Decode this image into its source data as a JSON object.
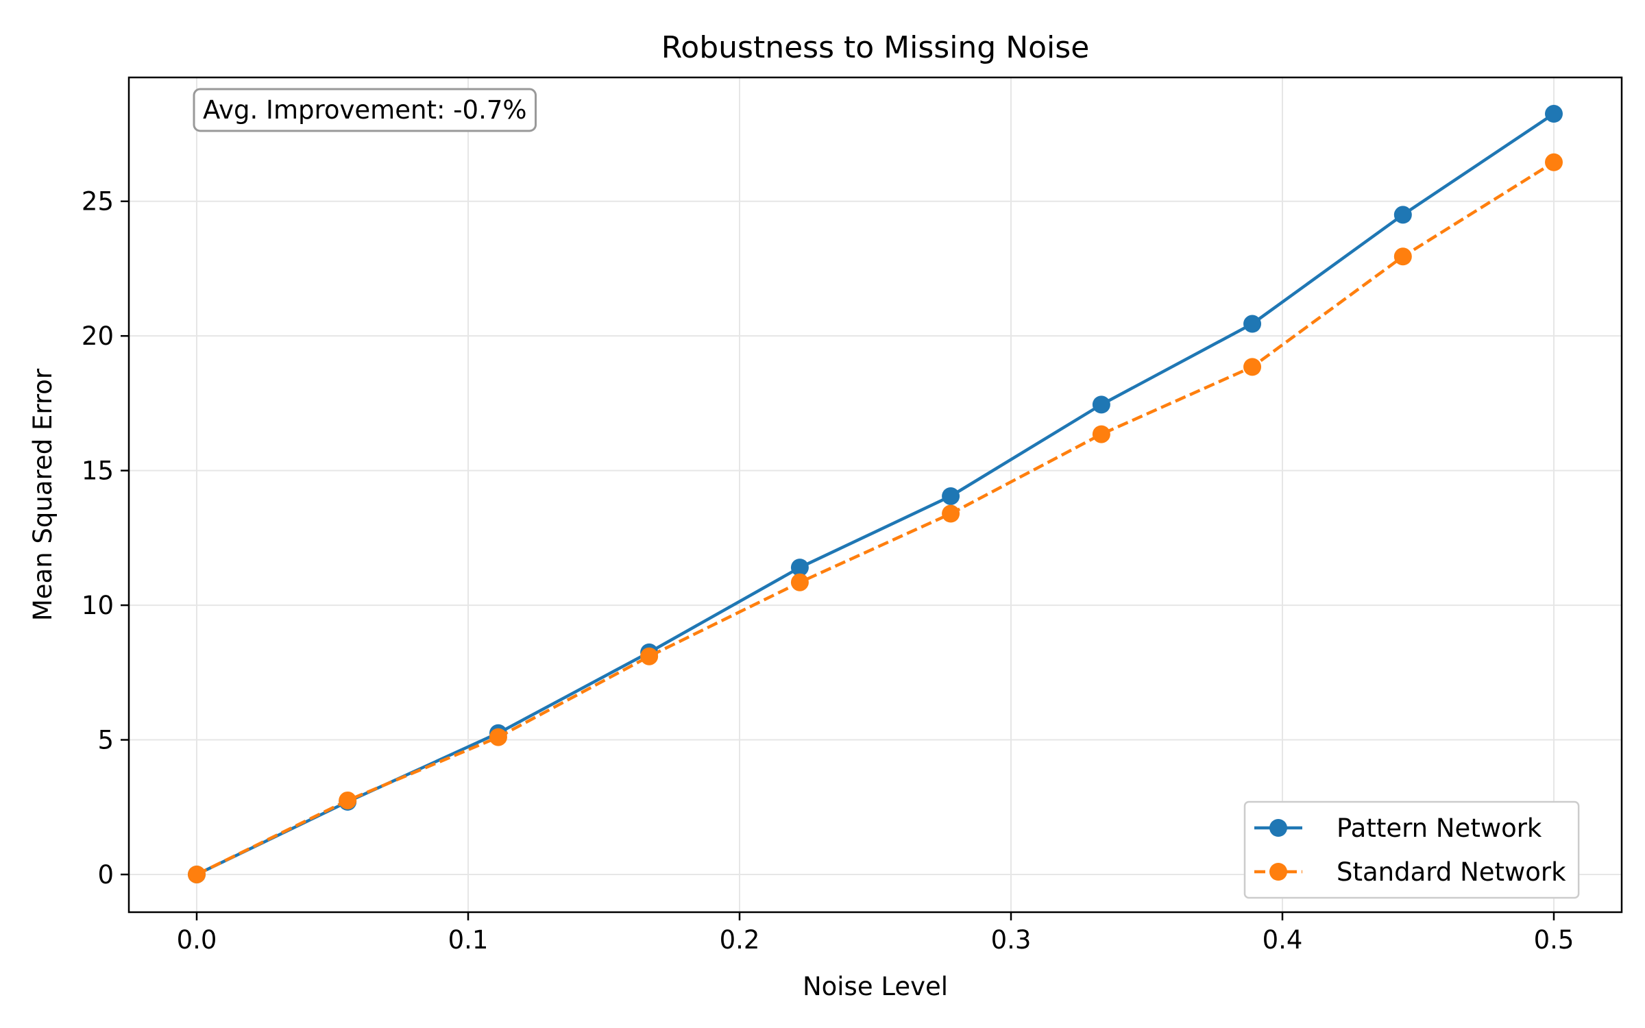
{
  "chart_data": {
    "type": "line",
    "title": "Robustness to Missing Noise",
    "xlabel": "Noise Level",
    "ylabel": "Mean Squared Error",
    "x": [
      0.0,
      0.0556,
      0.1111,
      0.1667,
      0.2222,
      0.2778,
      0.3333,
      0.3889,
      0.4444,
      0.5
    ],
    "xlim": [
      -0.025,
      0.525
    ],
    "ylim": [
      -1.4,
      29.6
    ],
    "xticks": [
      0.0,
      0.1,
      0.2,
      0.3,
      0.4,
      0.5
    ],
    "xtick_labels": [
      "0.0",
      "0.1",
      "0.2",
      "0.3",
      "0.4",
      "0.5"
    ],
    "yticks": [
      0,
      5,
      10,
      15,
      20,
      25
    ],
    "ytick_labels": [
      "0",
      "5",
      "10",
      "15",
      "20",
      "25"
    ],
    "grid": true,
    "legend_position": "lower-right",
    "annotation": "Avg. Improvement: -0.7%",
    "series": [
      {
        "name": "Pattern Network",
        "color": "#1f77b4",
        "linestyle": "solid",
        "marker": "circle",
        "values": [
          0.0,
          2.7,
          5.25,
          8.25,
          11.4,
          14.05,
          17.45,
          20.45,
          24.5,
          28.25
        ]
      },
      {
        "name": "Standard Network",
        "color": "#ff7f0e",
        "linestyle": "dashed",
        "marker": "circle",
        "values": [
          0.0,
          2.75,
          5.1,
          8.1,
          10.85,
          13.4,
          16.35,
          18.85,
          22.95,
          26.45
        ]
      }
    ]
  }
}
